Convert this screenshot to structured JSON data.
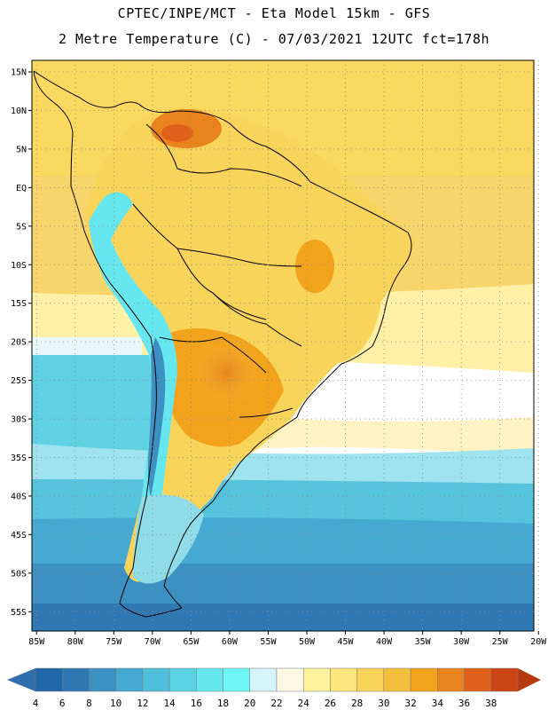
{
  "title": {
    "line1": "CPTEC/INPE/MCT -  Eta Model 15km - GFS",
    "line2": "2 Metre Temperature (C) - 07/03/2021 12UTC fct=178h"
  },
  "map": {
    "lat_labels": [
      "15N",
      "10N",
      "5N",
      "EQ",
      "5S",
      "10S",
      "15S",
      "20S",
      "25S",
      "30S",
      "35S",
      "40S",
      "45S",
      "50S",
      "55S"
    ],
    "lon_labels": [
      "85W",
      "80W",
      "75W",
      "70W",
      "65W",
      "60W",
      "55W",
      "50W",
      "45W",
      "40W",
      "35W",
      "30W",
      "25W",
      "20W"
    ],
    "lat_range": [
      16.5,
      -57.5
    ],
    "lon_range": [
      -85.6,
      -20.6
    ],
    "gridlines": "dotted"
  },
  "colorbar": {
    "labels": [
      "4",
      "6",
      "8",
      "10",
      "12",
      "14",
      "16",
      "18",
      "20",
      "22",
      "24",
      "26",
      "28",
      "30",
      "32",
      "34",
      "36",
      "38"
    ],
    "colors": [
      "#2166a8",
      "#2f78b4",
      "#3d91c2",
      "#45a9d2",
      "#4fbedb",
      "#5bd3e4",
      "#66e6ef",
      "#6ff7f7",
      "#d6f5fb",
      "#fff8e4",
      "#fff29c",
      "#fde67c",
      "#f9d45a",
      "#f4bf3c",
      "#f2a31b",
      "#e9831e",
      "#e0621a",
      "#cd4414"
    ],
    "left_arrow_color": "#2f6fae",
    "right_arrow_color": "#b83a10"
  }
}
